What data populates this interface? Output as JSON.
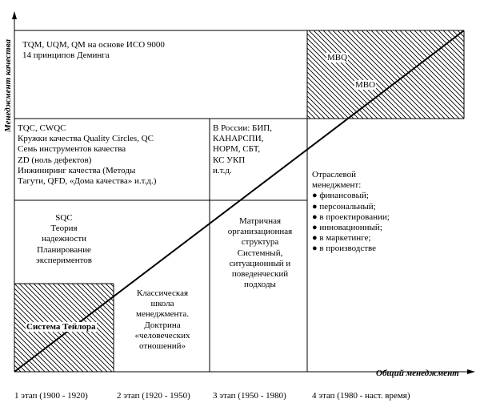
{
  "axes": {
    "y_label": "Менеджмент качества",
    "x_label": "Общий менеджмент"
  },
  "stages": [
    "1 этап (1900 - 1920)",
    "2 этап (1920 - 1950)",
    "3 этап (1950 - 1980)",
    "4 этап (1980 - наст. время)"
  ],
  "cells": {
    "tqm": [
      "TQM, UQM, QM на основе ИСО 9000",
      "14 принципов Деминга"
    ],
    "tqc": [
      "TQC, CWQC",
      "Кружки качества Quality Circles, QC",
      "Семь инструментов качества",
      "ZD (ноль дефектов)",
      "Инжиниринг качества (Методы",
      "Тагути, QFD, «Дома качества» и.т.д.)"
    ],
    "russia": [
      "В России: БИП,",
      "КАНАРСПИ,",
      "НОРМ, СБТ,",
      "КС УКП",
      "и.т.д."
    ],
    "sqc": [
      "SQC",
      "Теория",
      "надежности",
      "Планирование",
      "экспериментов"
    ],
    "matrix": [
      "Матричная",
      "организационная",
      "структура",
      "Системный,",
      "ситуационный и",
      "поведенческий",
      "подходы"
    ],
    "classic": [
      "Классическая",
      "школа",
      "менеджмента.",
      "Доктрина",
      "«человеческих",
      "отношений»"
    ],
    "branch_title": [
      "Отраслевой",
      "менеджмент:"
    ],
    "branch_items": [
      "финансовый;",
      "персональный;",
      "в проектировании;",
      "инновационный;",
      "в маркетинге;",
      "в производстве"
    ],
    "taylor": "Система Тейлора",
    "mbq": "MBQ",
    "mbo": "MBO"
  },
  "colors": {
    "line": "#000000",
    "background": "#ffffff"
  }
}
